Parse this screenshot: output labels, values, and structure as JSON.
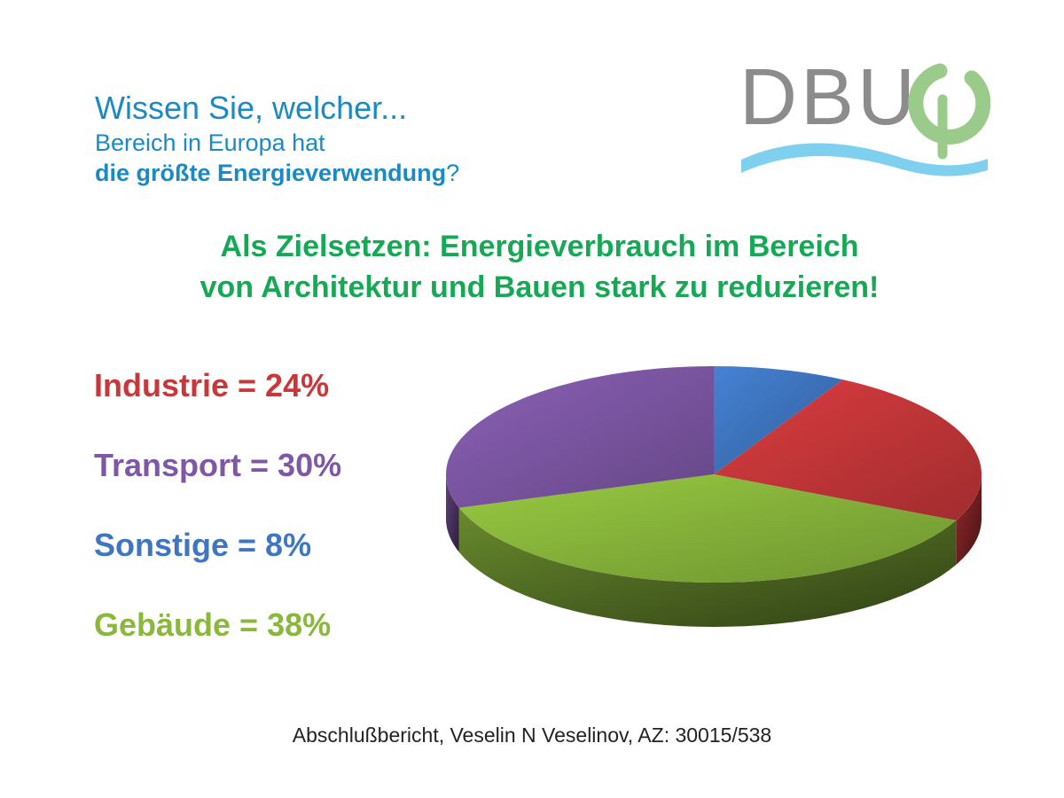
{
  "header": {
    "line1": "Wissen Sie, welcher...",
    "line2": "Bereich in Europa hat",
    "line3_bold": "die größte Energieverwendung",
    "line3_end": "?"
  },
  "logo": {
    "text": "DBU"
  },
  "goal": {
    "line1": "Als Zielsetzen: Energieverbrauch im Bereich",
    "line2": "von Architektur und Bauen stark zu reduzieren!"
  },
  "colors": {
    "heading": "#1a8ac6",
    "goal": "#16a955",
    "logo_text": "#8c8c8c",
    "logo_leaf": "#9acb8a",
    "logo_wave": "#7fd0ee"
  },
  "chart_data": {
    "type": "pie",
    "style": "3d",
    "slices": [
      {
        "label": "Industrie = 24%",
        "name": "Industrie",
        "value": 24,
        "color": "#c8373a"
      },
      {
        "label": "Transport = 30%",
        "name": "Transport",
        "value": 30,
        "color": "#7e58a6"
      },
      {
        "label": "Sonstige = 8%",
        "name": "Sonstige",
        "value": 8,
        "color": "#3f76c1"
      },
      {
        "label": "Gebäude = 38%",
        "name": "Gebäude",
        "value": 38,
        "color": "#8ab83c"
      }
    ],
    "legend_position": "left"
  },
  "source": "Abschlußbericht, Veselin N Veselinov, AZ: 30015/538"
}
